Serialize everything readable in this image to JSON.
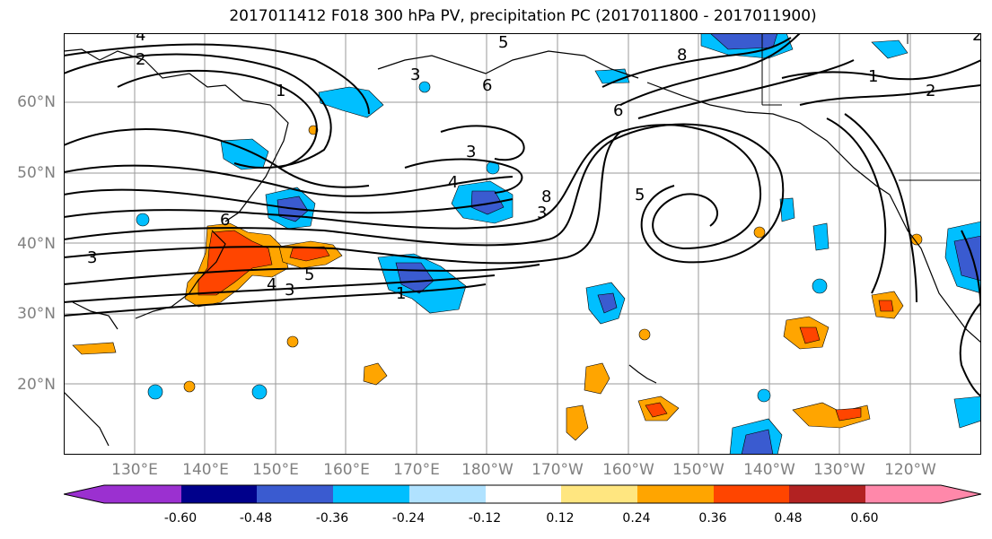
{
  "title": "2017011412 F018 300 hPa PV, precipitation PC (2017011800 - 2017011900)",
  "lat_labels": [
    "60°N",
    "50°N",
    "40°N",
    "30°N",
    "20°N"
  ],
  "lon_labels": [
    "130°E",
    "140°E",
    "150°E",
    "160°E",
    "170°E",
    "180°W",
    "170°W",
    "160°W",
    "150°W",
    "140°W",
    "130°W",
    "120°W"
  ],
  "colorbar": {
    "colors": [
      "#9b30d0",
      "#00008b",
      "#3a5bd0",
      "#00bfff",
      "#b0e2ff",
      "#ffffff",
      "#ffe680",
      "#ffa500",
      "#ff4500",
      "#b22222",
      "#ff88aa"
    ],
    "tick_labels": [
      "-0.60",
      "-0.48",
      "-0.36",
      "-0.24",
      "-0.12",
      "0.12",
      "0.24",
      "0.36",
      "0.48",
      "0.60"
    ]
  },
  "contour_labels": [
    "4",
    "2",
    "1",
    "3",
    "6",
    "5",
    "3",
    "4",
    "8",
    "1",
    "2",
    "6",
    "3",
    "5",
    "1",
    "3",
    "4",
    "2",
    "5",
    "6",
    "8",
    "3"
  ]
}
